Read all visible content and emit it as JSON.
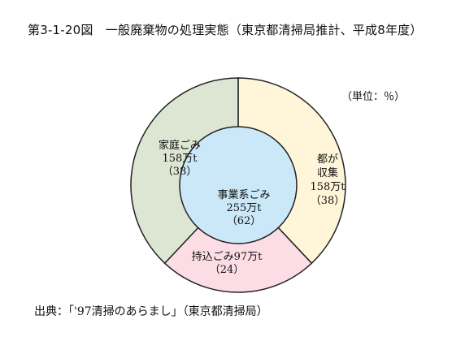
{
  "title": "第3-1-20図　一般廃棄物の処理実態（東京都清掃局推計、平成8年度）",
  "unit_label": "（単位：％）",
  "source": "出典：「'97清掃のあらまし」（東京都清掃局）",
  "chart_data": {
    "type": "pie",
    "title": "第3-1-20図　一般廃棄物の処理実態（東京都清掃局推計、平成8年度）",
    "unit": "％",
    "outer_ring": [
      {
        "label_lines": [
          "都が",
          "収集",
          "158万t",
          "（38）"
        ],
        "amount": "158万t",
        "percent": 38,
        "color": "#fff5d9"
      },
      {
        "label_lines": [
          "持込ごみ97万t",
          "（24）"
        ],
        "amount": "97万t",
        "percent": 24,
        "color": "#fcdde6"
      },
      {
        "label_lines": [
          "家庭ごみ",
          "158万t",
          "（38）"
        ],
        "amount": "158万t",
        "percent": 38,
        "color": "#dde6d3"
      }
    ],
    "inner_circle": {
      "label_lines": [
        "事業系ごみ",
        "255万t",
        "（62）"
      ],
      "amount": "255万t",
      "percent": 62,
      "color": "#cbe8f8"
    }
  }
}
